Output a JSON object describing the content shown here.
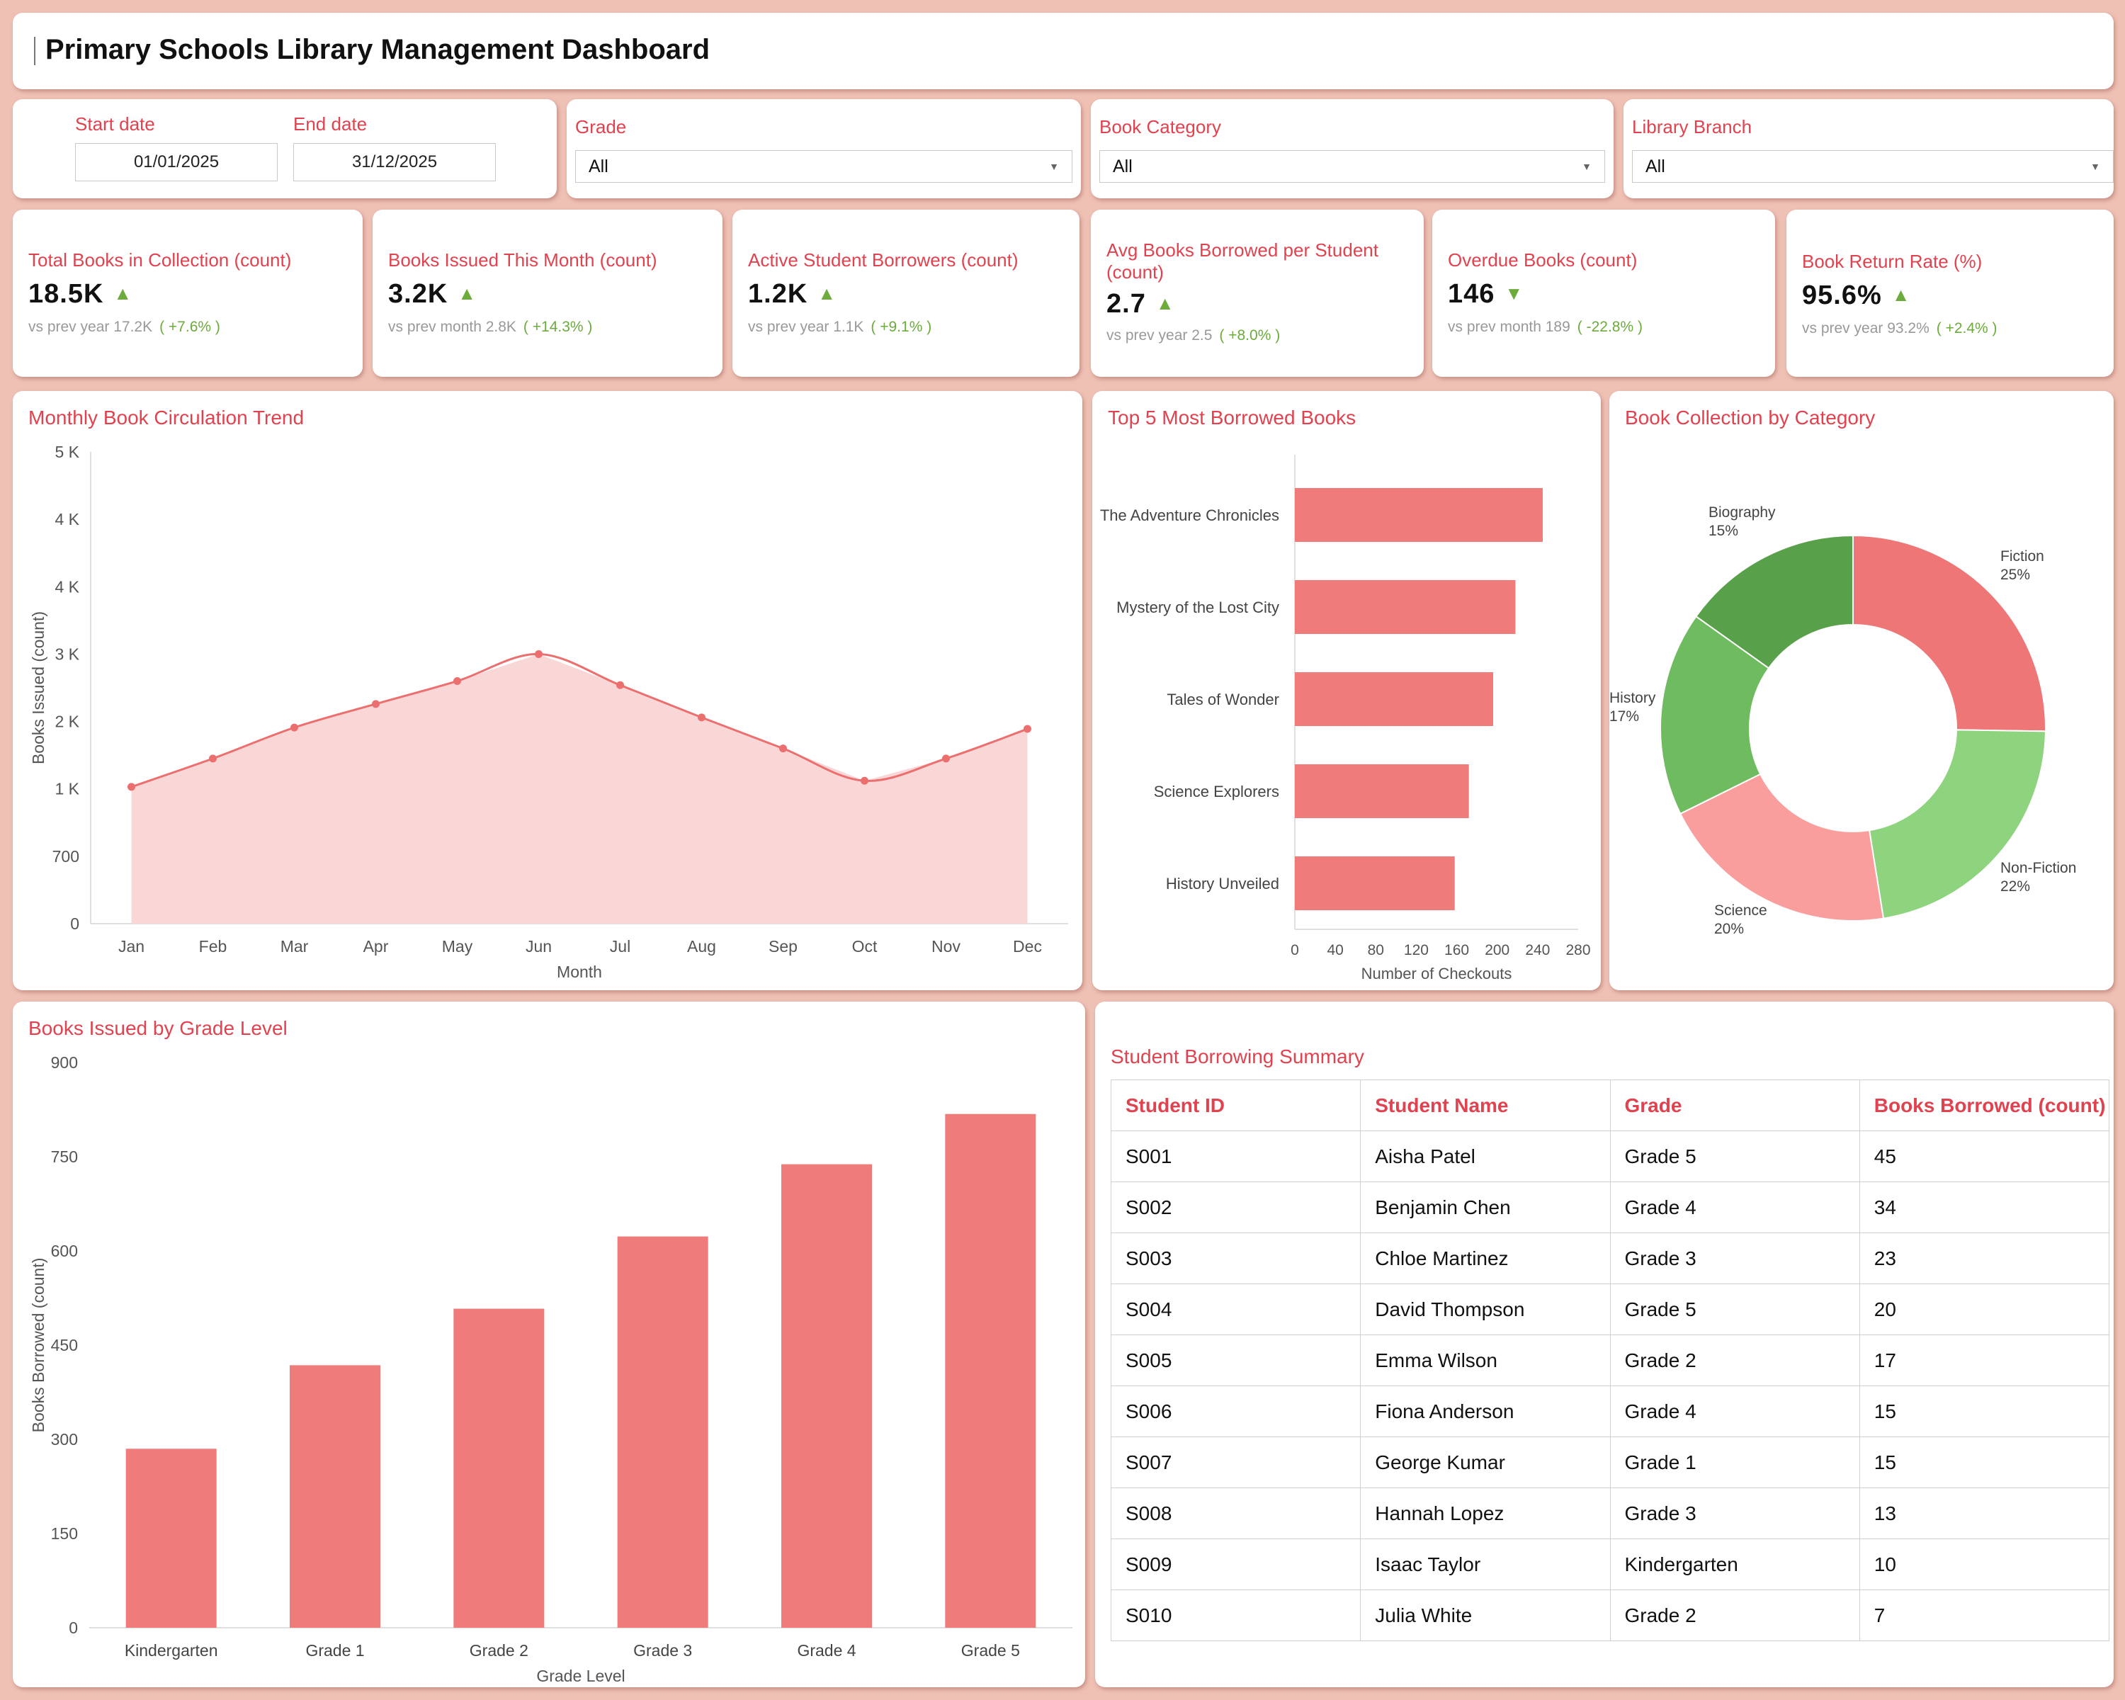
{
  "header": {
    "title": "Primary Schools Library Management Dashboard"
  },
  "filters": {
    "start_label": "Start date",
    "start_value": "01/01/2025",
    "end_label": "End date",
    "end_value": "31/12/2025",
    "grade_label": "Grade",
    "grade_value": "All",
    "category_label": "Book Category",
    "category_value": "All",
    "branch_label": "Library Branch",
    "branch_value": "All"
  },
  "kpis": [
    {
      "title": "Total Books in Collection (count)",
      "value": "18.5K",
      "trend": "up",
      "comparison": "vs prev year 17.2K",
      "delta": "( +7.6% )"
    },
    {
      "title": "Books Issued This Month (count)",
      "value": "3.2K",
      "trend": "up",
      "comparison": "vs prev month 2.8K",
      "delta": "( +14.3% )"
    },
    {
      "title": "Active Student Borrowers (count)",
      "value": "1.2K",
      "trend": "up",
      "comparison": "vs prev year 1.1K",
      "delta": "( +9.1% )"
    },
    {
      "title": "Avg Books Borrowed per Student (count)",
      "value": "2.7",
      "trend": "up",
      "comparison": "vs prev year 2.5",
      "delta": "( +8.0% )"
    },
    {
      "title": "Overdue Books (count)",
      "value": "146",
      "trend": "down",
      "comparison": "vs prev month 189",
      "delta": "( -22.8% )"
    },
    {
      "title": "Book Return Rate (%)",
      "value": "95.6%",
      "trend": "up",
      "comparison": "vs prev year 93.2%",
      "delta": "( +2.4% )"
    }
  ],
  "colors": {
    "accent": "#e0434f",
    "bar": "#f07b7b",
    "area_fill": "#fad7d7",
    "line": "#ec6f6f",
    "positive": "#6cab3c"
  },
  "circulation": {
    "title": "Monthly Book Circulation Trend",
    "chart_data": {
      "type": "area",
      "categories": [
        "Jan",
        "Feb",
        "Mar",
        "Apr",
        "May",
        "Jun",
        "Jul",
        "Aug",
        "Sep",
        "Oct",
        "Nov",
        "Dec"
      ],
      "values": [
        2030,
        2450,
        2910,
        3260,
        3600,
        4000,
        3540,
        3060,
        2600,
        2120,
        2450,
        2890
      ],
      "ylim": [
        0,
        7000
      ],
      "ytick_labels": [
        "0",
        "700",
        "1 K",
        "2 K",
        "3 K",
        "4 K",
        "4 K",
        "5 K"
      ],
      "xlabel": "Month",
      "ylabel": "Books Issued (count)"
    }
  },
  "top_books": {
    "title": "Top 5 Most Borrowed Books",
    "chart_data": {
      "type": "bar",
      "categories": [
        "The Adventure Chronicles",
        "Mystery of the Lost City",
        "Tales of Wonder",
        "Science Explorers",
        "History Unveiled"
      ],
      "values": [
        245,
        218,
        196,
        172,
        158
      ],
      "xlim": [
        0,
        280
      ],
      "xticks": [
        0,
        40,
        80,
        120,
        160,
        200,
        240,
        280
      ],
      "xlabel": "Number of Checkouts"
    }
  },
  "collection": {
    "title": "Book Collection by Category",
    "chart_data": {
      "type": "pie",
      "slices": [
        {
          "label": "Fiction",
          "value": 25,
          "pct": "25%",
          "color": "#ef7676"
        },
        {
          "label": "Non-Fiction",
          "value": 22,
          "pct": "22%",
          "color": "#8ed37d"
        },
        {
          "label": "Science",
          "value": 20,
          "pct": "20%",
          "color": "#fa9d9d"
        },
        {
          "label": "History",
          "value": 17,
          "pct": "17%",
          "color": "#6fbc60"
        },
        {
          "label": "Biography",
          "value": 15,
          "pct": "15%",
          "color": "#59a04b"
        }
      ]
    }
  },
  "grade_chart": {
    "title": "Books Issued by Grade Level",
    "chart_data": {
      "type": "bar",
      "categories": [
        "Kindergarten",
        "Grade 1",
        "Grade 2",
        "Grade 3",
        "Grade 4",
        "Grade 5"
      ],
      "values": [
        285,
        418,
        508,
        623,
        738,
        818
      ],
      "ylim": [
        0,
        900
      ],
      "yticks": [
        0,
        150,
        300,
        450,
        600,
        750,
        900
      ],
      "xlabel": "Grade Level",
      "ylabel": "Books Borrowed (count)"
    }
  },
  "summary": {
    "title": "Student Borrowing Summary",
    "columns": [
      "Student ID",
      "Student Name",
      "Grade",
      "Books Borrowed (count)"
    ],
    "rows": [
      [
        "S001",
        "Aisha Patel",
        "Grade 5",
        "45"
      ],
      [
        "S002",
        "Benjamin Chen",
        "Grade 4",
        "34"
      ],
      [
        "S003",
        "Chloe Martinez",
        "Grade 3",
        "23"
      ],
      [
        "S004",
        "David Thompson",
        "Grade 5",
        "20"
      ],
      [
        "S005",
        "Emma Wilson",
        "Grade 2",
        "17"
      ],
      [
        "S006",
        "Fiona Anderson",
        "Grade 4",
        "15"
      ],
      [
        "S007",
        "George Kumar",
        "Grade 1",
        "15"
      ],
      [
        "S008",
        "Hannah Lopez",
        "Grade 3",
        "13"
      ],
      [
        "S009",
        "Isaac Taylor",
        "Kindergarten",
        "10"
      ],
      [
        "S010",
        "Julia White",
        "Grade 2",
        "7"
      ]
    ]
  }
}
